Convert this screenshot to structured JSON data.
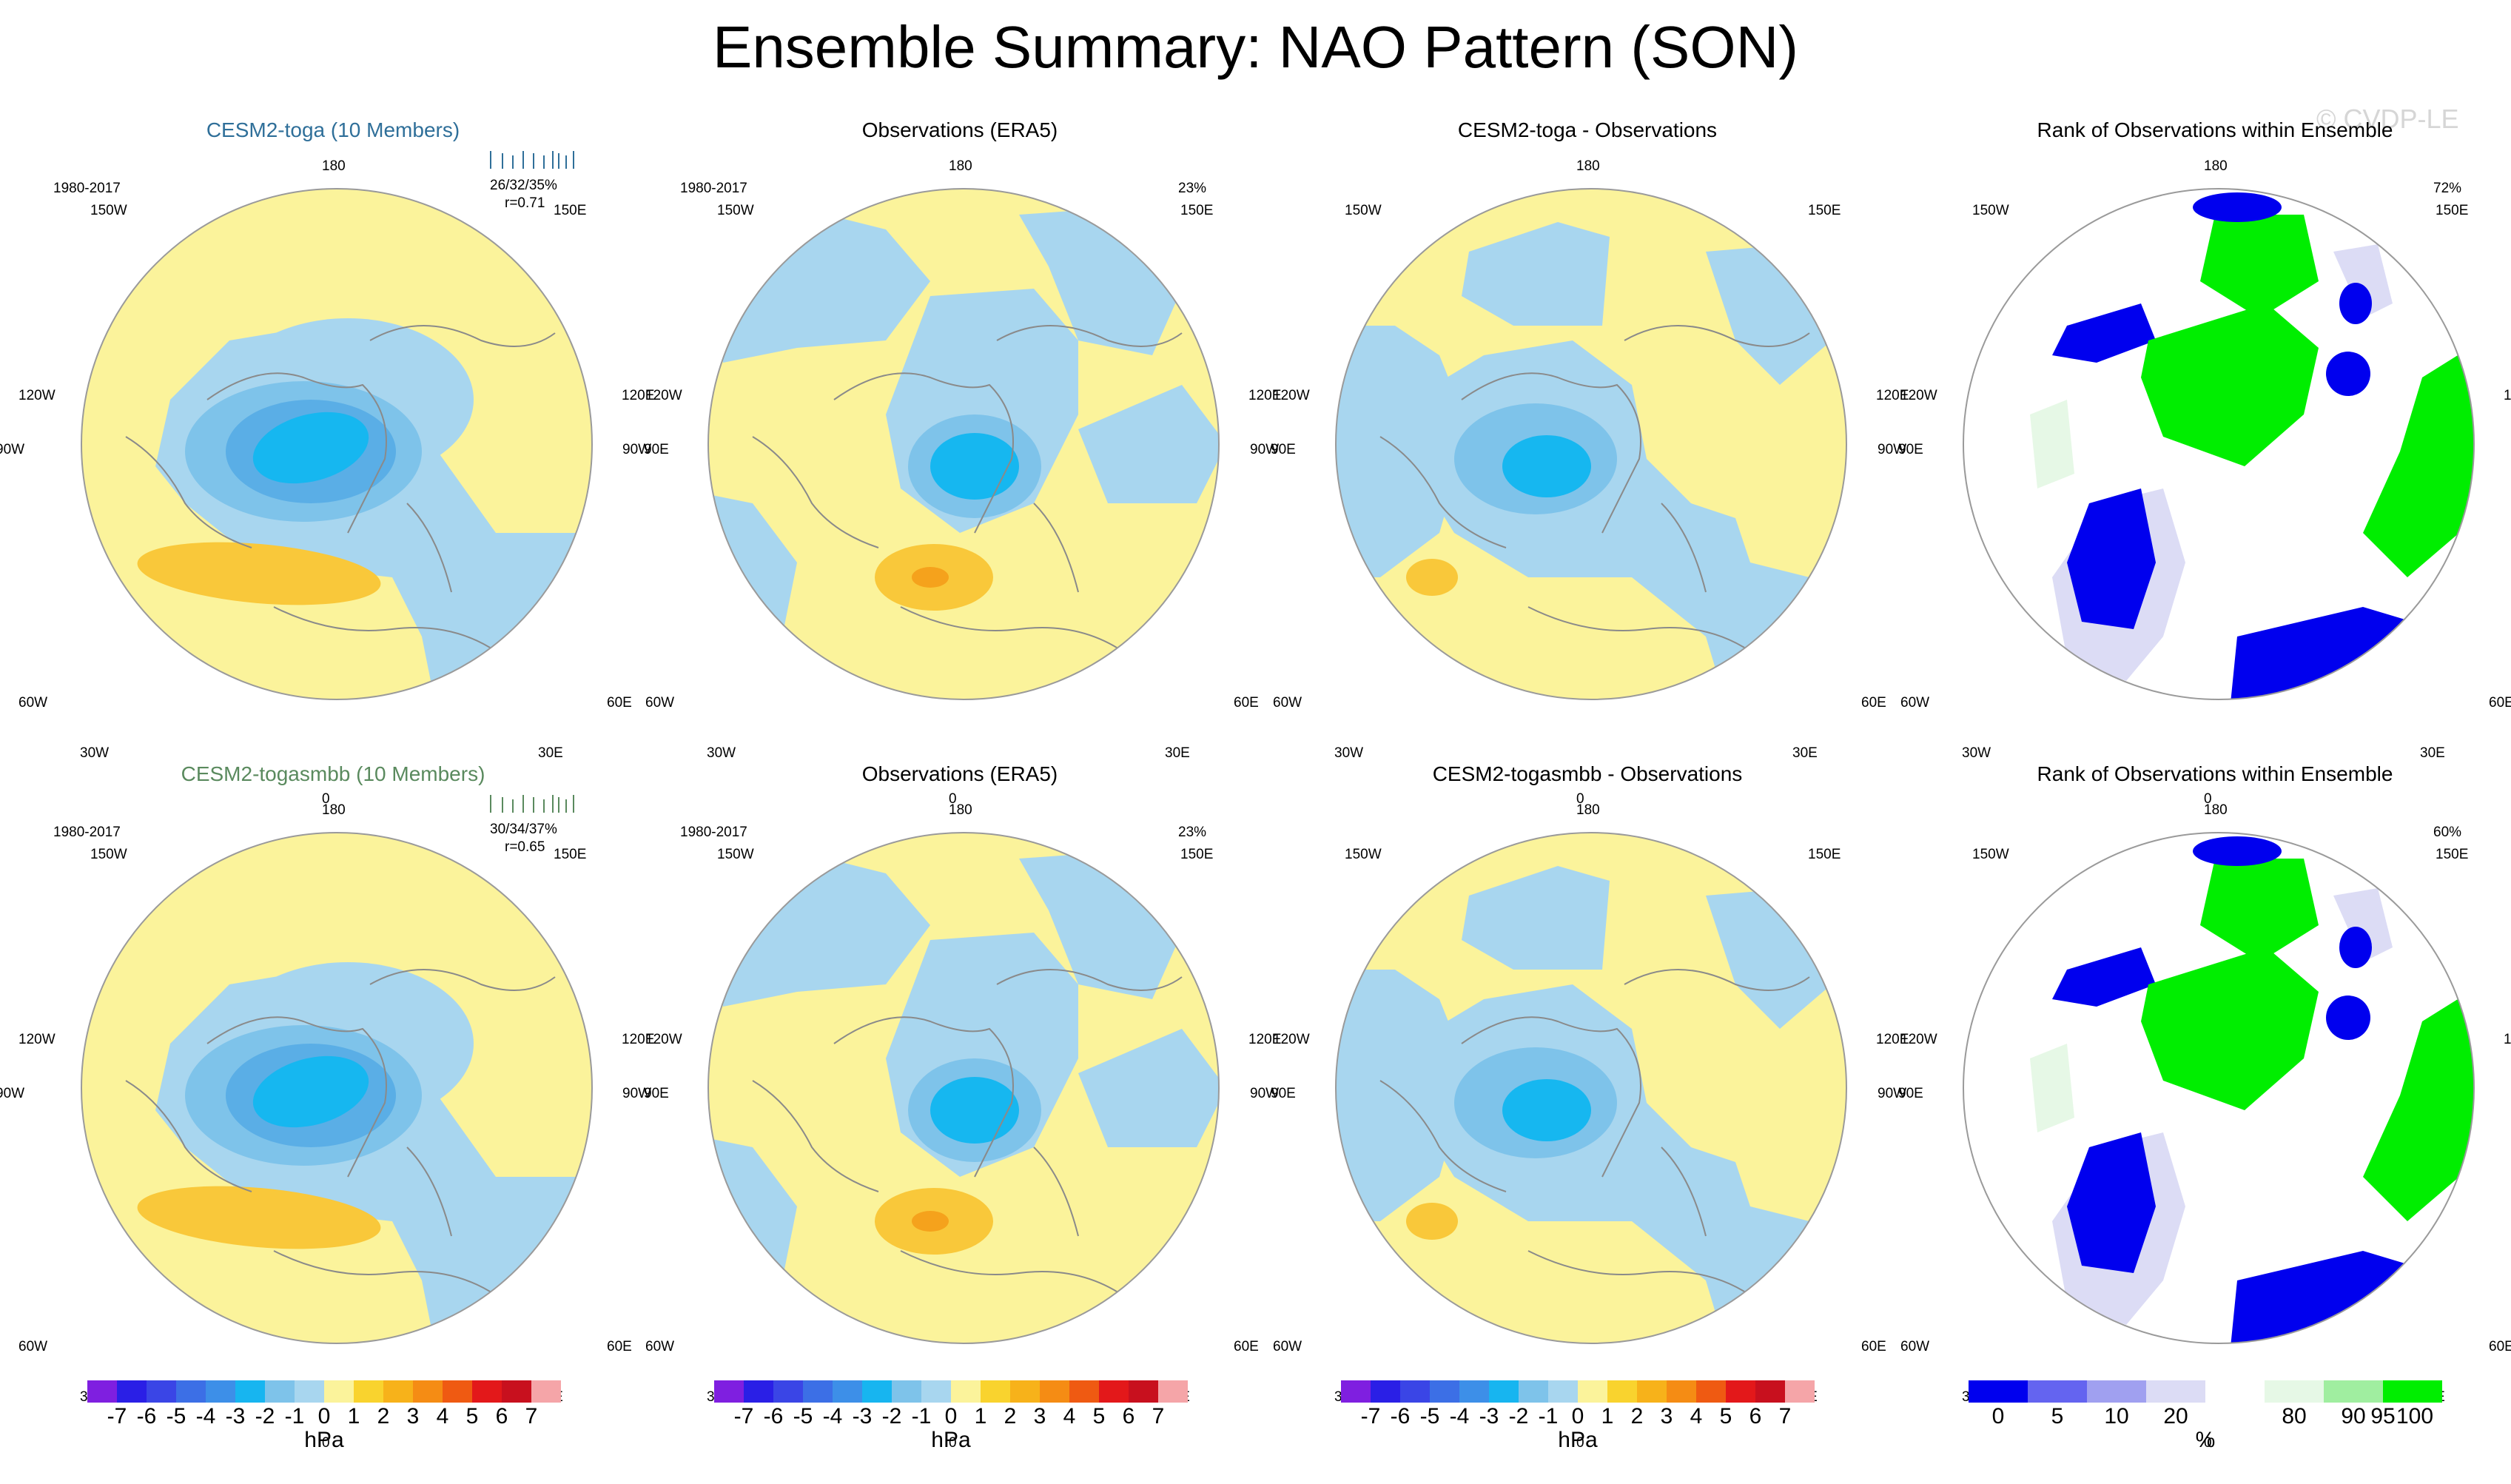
{
  "title": "Ensemble Summary: NAO Pattern (SON)",
  "watermark": "© CVDP-LE",
  "lon_labels": [
    "180",
    "150E",
    "120E",
    "90E",
    "60E",
    "30E",
    "0",
    "30W",
    "60W",
    "90W",
    "120W",
    "150W"
  ],
  "colors": {
    "yellow": "#fbf39b",
    "lightblue": "#a8d6ef",
    "midblue": "#7ec3ea",
    "blue": "#5aaee6",
    "cyan": "#16b7f0",
    "orange": "#f9c83a",
    "darkorange": "#f5a21c",
    "rank_blue": "#0000ee",
    "rank_lilac": "#dcdcf5",
    "rank_green": "#00ee00",
    "rank_palegreen": "#e6f8e6"
  },
  "panels": [
    {
      "title": "CESM2-toga (10 Members)",
      "period": "1980-2017",
      "stats": "26/32/35%",
      "corr": "r=0.71",
      "style": "model",
      "pct": ""
    },
    {
      "title": "Observations (ERA5)",
      "period": "1980-2017",
      "stats": "",
      "corr": "",
      "style": "obs",
      "pct": "23%"
    },
    {
      "title": "CESM2-toga - Observations",
      "period": "",
      "stats": "",
      "corr": "",
      "style": "diff",
      "pct": ""
    },
    {
      "title": "Rank of Observations within Ensemble",
      "period": "",
      "stats": "",
      "corr": "",
      "style": "rank",
      "pct": "72%"
    },
    {
      "title": "CESM2-togasmbb (10 Members)",
      "period": "1980-2017",
      "stats": "30/34/37%",
      "corr": "r=0.65",
      "style": "model",
      "pct": ""
    },
    {
      "title": "Observations (ERA5)",
      "period": "1980-2017",
      "stats": "",
      "corr": "",
      "style": "obs",
      "pct": "23%"
    },
    {
      "title": "CESM2-togasmbb - Observations",
      "period": "",
      "stats": "",
      "corr": "",
      "style": "diff",
      "pct": ""
    },
    {
      "title": "Rank of Observations within Ensemble",
      "period": "",
      "stats": "",
      "corr": "",
      "style": "rank",
      "pct": "60%"
    }
  ],
  "chart_data": [
    {
      "type": "heatmap",
      "name": "colorbar-hpa",
      "unit": "hPa",
      "ticks": [
        "-7",
        "-6",
        "-5",
        "-4",
        "-3",
        "-2",
        "-1",
        "0",
        "1",
        "2",
        "3",
        "4",
        "5",
        "6",
        "7"
      ],
      "colors": [
        "#7f1fe0",
        "#2a1fe6",
        "#3a45e6",
        "#3c6fe6",
        "#3d8fe8",
        "#17b5f0",
        "#7ec3ea",
        "#a8d6ef",
        "#fbf39b",
        "#f9d32e",
        "#f7b21a",
        "#f58c14",
        "#ef5a12",
        "#e3181a",
        "#c8101e",
        "#f5a5a8"
      ]
    },
    {
      "type": "heatmap",
      "name": "colorbar-rank",
      "unit": "%",
      "ticks": [
        "0",
        "5",
        "10",
        "20",
        "80",
        "90",
        "95",
        "100"
      ],
      "colors": [
        "#0000ee",
        "#6464f0",
        "#a0a0f0",
        "#dcdcf5",
        "#ffffff",
        "#e6f8e6",
        "#a0eea0",
        "#00ee00"
      ]
    }
  ]
}
